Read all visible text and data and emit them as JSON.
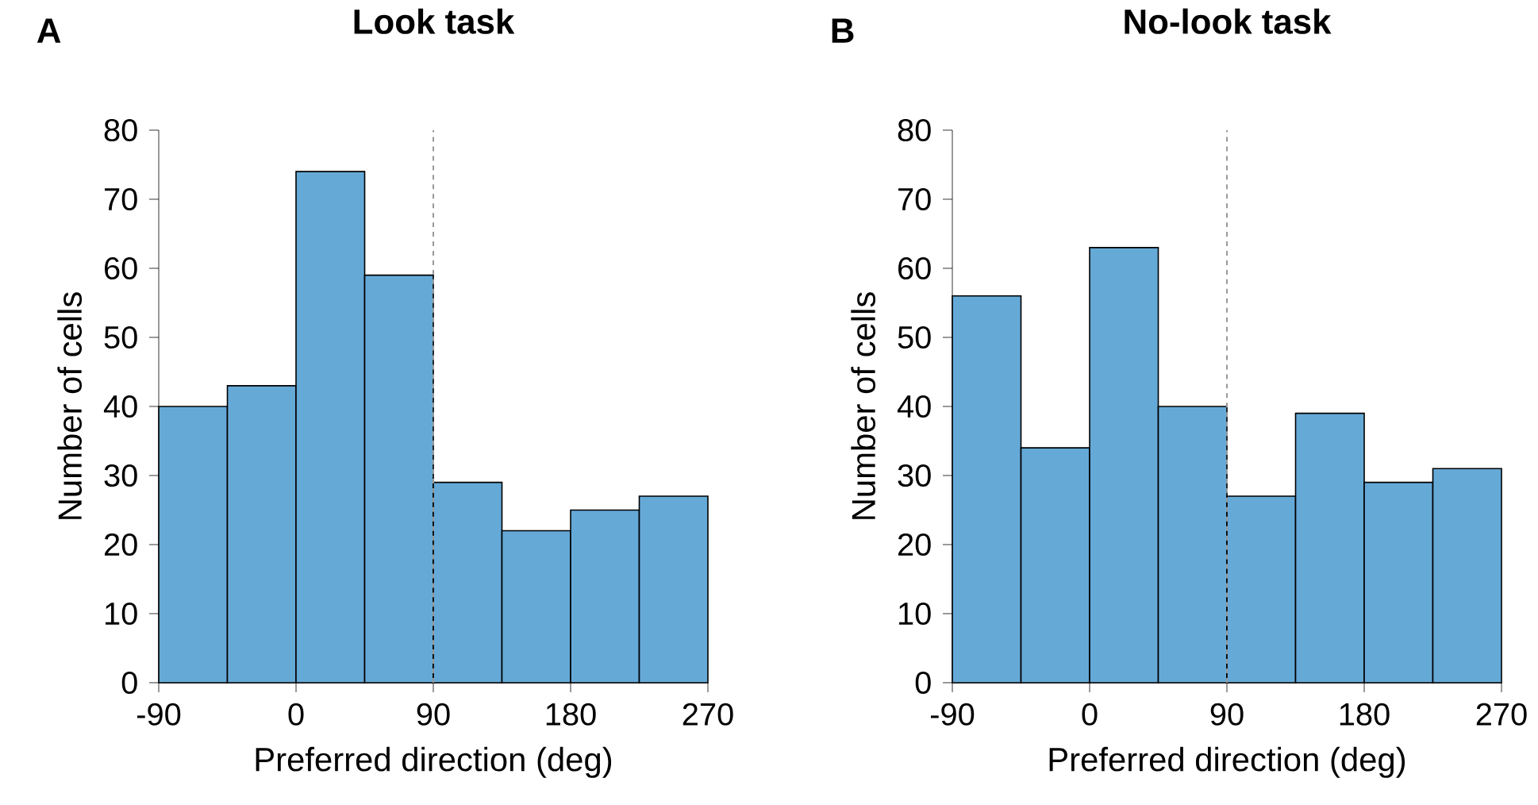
{
  "chart_data": [
    {
      "type": "histogram",
      "title": "Look task",
      "xlabel": "Preferred direction (deg)",
      "ylabel": "Number of cells",
      "annotations": [
        "A"
      ],
      "bins": [
        -90,
        -45,
        0,
        45,
        90,
        135,
        180,
        225,
        270
      ],
      "values": [
        40,
        43,
        74,
        59,
        29,
        22,
        25,
        27
      ],
      "color": "#65a9d7",
      "xlim": [
        -90,
        270
      ],
      "ylim": [
        0,
        80
      ],
      "xticks": [
        -90,
        0,
        90,
        180,
        270
      ],
      "yticks": [
        0,
        10,
        20,
        30,
        40,
        50,
        60,
        70,
        80
      ],
      "ref_lines": [
        {
          "axis": "x",
          "value": 90,
          "color": "#999999",
          "line_style": "dashed"
        }
      ]
    },
    {
      "type": "histogram",
      "title": "No-look task",
      "xlabel": "Preferred direction (deg)",
      "ylabel": "Number of cells",
      "annotations": [
        "B"
      ],
      "bins": [
        -90,
        -45,
        0,
        45,
        90,
        135,
        180,
        225,
        270
      ],
      "values": [
        56,
        34,
        63,
        40,
        27,
        39,
        29,
        31
      ],
      "color": "#65a9d7",
      "xlim": [
        -90,
        270
      ],
      "ylim": [
        0,
        80
      ],
      "xticks": [
        -90,
        0,
        90,
        180,
        270
      ],
      "yticks": [
        0,
        10,
        20,
        30,
        40,
        50,
        60,
        70,
        80
      ],
      "ref_lines": [
        {
          "axis": "x",
          "value": 90,
          "color": "#999999",
          "line_style": "dashed"
        }
      ]
    }
  ]
}
